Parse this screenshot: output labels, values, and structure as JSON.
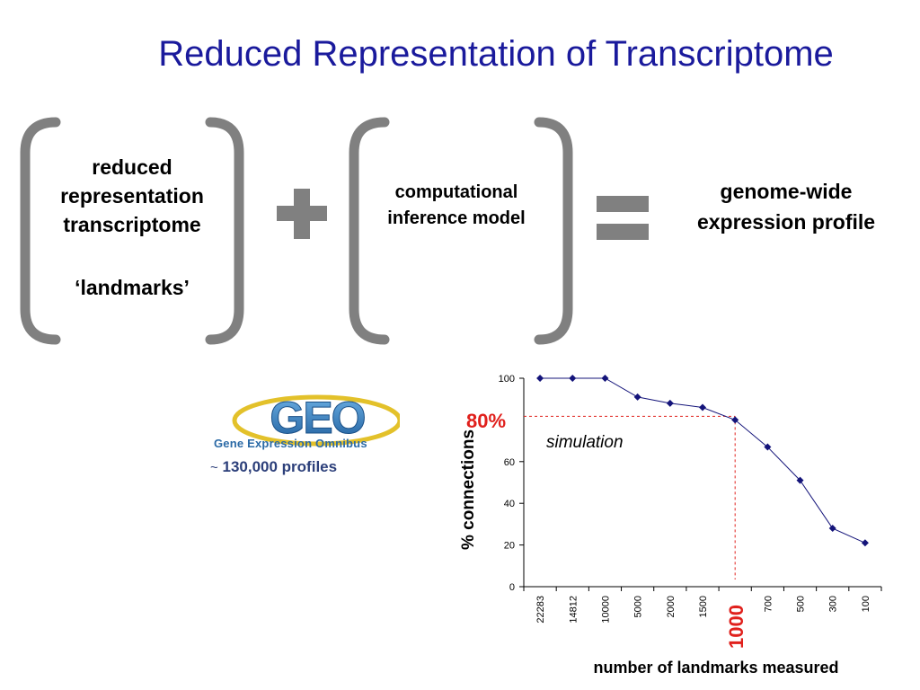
{
  "slide": {
    "title": "Reduced Representation of Transcriptome"
  },
  "equation": {
    "box1": {
      "line1": "reduced",
      "line2": "representation",
      "line3": "transcriptome",
      "line4": "‘landmarks’"
    },
    "box2": {
      "line1": "computational",
      "line2": "inference model"
    },
    "result": {
      "line1": "genome-wide",
      "line2": "expression profile"
    },
    "operator_color": "#808080"
  },
  "geo": {
    "logo_text": "GEO",
    "caption": "Gene Expression Omnibus",
    "tilde": "~",
    "profiles": "130,000 profiles"
  },
  "chart_data": {
    "type": "line",
    "categories": [
      "22283",
      "14812",
      "10000",
      "5000",
      "2000",
      "1500",
      "1000",
      "700",
      "500",
      "300",
      "100"
    ],
    "series": [
      {
        "values": [
          100,
          100,
          100,
          91,
          88,
          86,
          80,
          67,
          51,
          28,
          21
        ]
      }
    ],
    "xlabel": "number of landmarks measured",
    "ylabel": "% connections",
    "ylim": [
      0,
      100
    ],
    "yticks": [
      0,
      20,
      40,
      60,
      100
    ],
    "annotation": "simulation",
    "highlight": {
      "category": "1000",
      "value": 80,
      "label_y": "80%",
      "label_x": "1000"
    },
    "line_color": "#14147a",
    "highlight_color": "#e0201c"
  }
}
